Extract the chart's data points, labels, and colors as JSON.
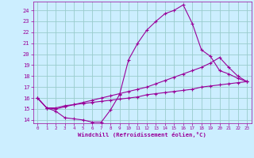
{
  "background_color": "#cceeff",
  "grid_color": "#99cccc",
  "line_color": "#990099",
  "marker_color": "#990099",
  "xlabel": "Windchill (Refroidissement éolien,°C)",
  "xlabel_color": "#990099",
  "tick_color": "#990099",
  "xlim": [
    -0.5,
    23.5
  ],
  "ylim": [
    13.7,
    24.8
  ],
  "yticks": [
    14,
    15,
    16,
    17,
    18,
    19,
    20,
    21,
    22,
    23,
    24
  ],
  "xticks": [
    0,
    1,
    2,
    3,
    4,
    5,
    6,
    7,
    8,
    9,
    10,
    11,
    12,
    13,
    14,
    15,
    16,
    17,
    18,
    19,
    20,
    21,
    22,
    23
  ],
  "series1_x": [
    0,
    1,
    2,
    3,
    4,
    5,
    6,
    7,
    8,
    9,
    10,
    11,
    12,
    13,
    14,
    15,
    16,
    17,
    18,
    19,
    20,
    21,
    22,
    23
  ],
  "series1_y": [
    16.0,
    15.1,
    14.8,
    14.2,
    14.1,
    14.0,
    13.8,
    13.8,
    14.9,
    16.3,
    19.5,
    21.0,
    22.2,
    23.0,
    23.7,
    24.0,
    24.5,
    22.8,
    20.4,
    19.8,
    18.5,
    18.2,
    17.8,
    17.5
  ],
  "series2_x": [
    0,
    1,
    2,
    3,
    4,
    5,
    6,
    7,
    8,
    9,
    10,
    11,
    12,
    13,
    14,
    15,
    16,
    17,
    18,
    19,
    20,
    21,
    22,
    23
  ],
  "series2_y": [
    16.0,
    15.1,
    15.0,
    15.2,
    15.4,
    15.6,
    15.8,
    16.0,
    16.2,
    16.4,
    16.6,
    16.8,
    17.0,
    17.3,
    17.6,
    17.9,
    18.2,
    18.5,
    18.8,
    19.2,
    19.7,
    18.8,
    18.0,
    17.5
  ],
  "series3_x": [
    0,
    1,
    2,
    3,
    4,
    5,
    6,
    7,
    8,
    9,
    10,
    11,
    12,
    13,
    14,
    15,
    16,
    17,
    18,
    19,
    20,
    21,
    22,
    23
  ],
  "series3_y": [
    16.0,
    15.1,
    15.1,
    15.3,
    15.4,
    15.5,
    15.6,
    15.7,
    15.8,
    15.9,
    16.0,
    16.1,
    16.3,
    16.4,
    16.5,
    16.6,
    16.7,
    16.8,
    17.0,
    17.1,
    17.2,
    17.3,
    17.4,
    17.5
  ]
}
